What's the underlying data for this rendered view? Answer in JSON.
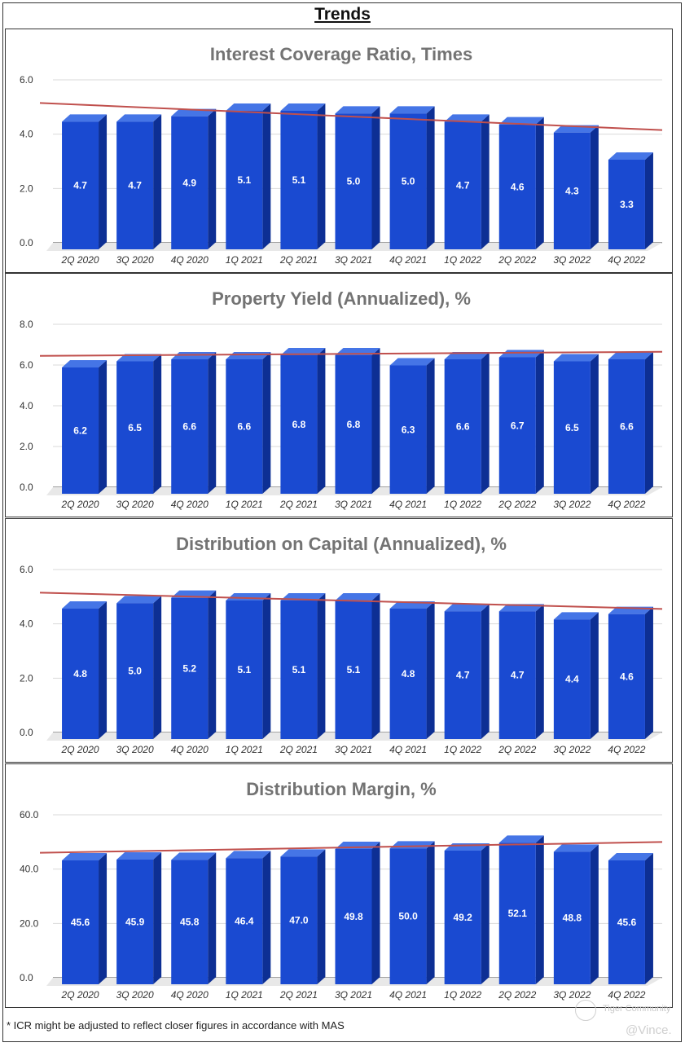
{
  "page": {
    "title": "Trends"
  },
  "footnote": "* ICR might be adjusted to reflect closer figures in accordance with MAS",
  "watermark": {
    "brand": "Tiger Community",
    "author": "@Vince."
  },
  "colors": {
    "bar_front": "#1a4ad1",
    "bar_top": "#4575e6",
    "bar_side": "#0d2f94",
    "trend": "#c0504d",
    "title": "#737373",
    "grid": "#d9d9d9"
  },
  "chart_data": [
    {
      "type": "bar",
      "title": "Interest Coverage Ratio, Times",
      "categories": [
        "2Q 2020",
        "3Q 2020",
        "4Q 2020",
        "1Q 2021",
        "2Q 2021",
        "3Q 2021",
        "4Q 2021",
        "1Q 2022",
        "2Q 2022",
        "3Q 2022",
        "4Q 2022"
      ],
      "values": [
        4.7,
        4.7,
        4.9,
        5.1,
        5.1,
        5.0,
        5.0,
        4.7,
        4.6,
        4.3,
        3.3
      ],
      "yticks": [
        "0.0",
        "2.0",
        "4.0",
        "6.0"
      ],
      "ylim": [
        0,
        6
      ],
      "trendline": [
        5.15,
        4.15
      ]
    },
    {
      "type": "bar",
      "title": "Property Yield (Annualized), %",
      "categories": [
        "2Q 2020",
        "3Q 2020",
        "4Q 2020",
        "1Q 2021",
        "2Q 2021",
        "3Q 2021",
        "4Q 2021",
        "1Q 2022",
        "2Q 2022",
        "3Q 2022",
        "4Q 2022"
      ],
      "values": [
        6.2,
        6.5,
        6.6,
        6.6,
        6.8,
        6.8,
        6.3,
        6.6,
        6.7,
        6.5,
        6.6
      ],
      "yticks": [
        "0.0",
        "2.0",
        "4.0",
        "6.0",
        "8.0"
      ],
      "ylim": [
        0,
        8
      ],
      "trendline": [
        6.45,
        6.65
      ]
    },
    {
      "type": "bar",
      "title": "Distribution on Capital (Annualized), %",
      "categories": [
        "2Q 2020",
        "3Q 2020",
        "4Q 2020",
        "1Q 2021",
        "2Q 2021",
        "3Q 2021",
        "4Q 2021",
        "1Q 2022",
        "2Q 2022",
        "3Q 2022",
        "4Q 2022"
      ],
      "values": [
        4.8,
        5.0,
        5.2,
        5.1,
        5.1,
        5.1,
        4.8,
        4.7,
        4.7,
        4.4,
        4.6
      ],
      "yticks": [
        "0.0",
        "2.0",
        "4.0",
        "6.0"
      ],
      "ylim": [
        0,
        6
      ],
      "trendline": [
        5.15,
        4.55
      ]
    },
    {
      "type": "bar",
      "title": "Distribution Margin, %",
      "categories": [
        "2Q 2020",
        "3Q 2020",
        "4Q 2020",
        "1Q 2021",
        "2Q 2021",
        "3Q 2021",
        "4Q 2021",
        "1Q 2022",
        "2Q 2022",
        "3Q 2022",
        "4Q 2022"
      ],
      "values": [
        45.6,
        45.9,
        45.8,
        46.4,
        47.0,
        49.8,
        50.0,
        49.2,
        52.1,
        48.8,
        45.6
      ],
      "yticks": [
        "0.0",
        "20.0",
        "40.0",
        "60.0"
      ],
      "ylim": [
        0,
        60
      ],
      "trendline": [
        46.0,
        50.0
      ]
    }
  ]
}
